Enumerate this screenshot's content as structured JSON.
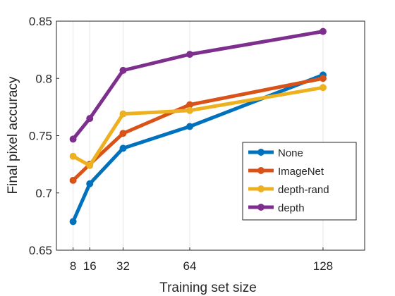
{
  "chart_data": {
    "type": "line",
    "xlabel": "Training set size",
    "ylabel": "Final pixel accuracy",
    "x": [
      8,
      16,
      32,
      64,
      128
    ],
    "x_ticks": [
      "8",
      "16",
      "32",
      "64",
      "128"
    ],
    "xlim": [
      0,
      148
    ],
    "ylim": [
      0.65,
      0.85
    ],
    "y_ticks": [
      "0.65",
      "0.7",
      "0.75",
      "0.8",
      "0.85"
    ],
    "grid": "vertical lines at x ticks",
    "legend_position": "lower-right",
    "series": [
      {
        "name": "None",
        "color": "#0072BD",
        "values": [
          0.675,
          0.708,
          0.739,
          0.758,
          0.803
        ]
      },
      {
        "name": "ImageNet",
        "color": "#D95319",
        "values": [
          0.711,
          0.725,
          0.752,
          0.777,
          0.8
        ]
      },
      {
        "name": "depth-rand",
        "color": "#EDB120",
        "values": [
          0.732,
          0.724,
          0.769,
          0.772,
          0.792
        ]
      },
      {
        "name": "depth",
        "color": "#7E2F8E",
        "values": [
          0.747,
          0.765,
          0.807,
          0.821,
          0.841
        ]
      }
    ]
  }
}
